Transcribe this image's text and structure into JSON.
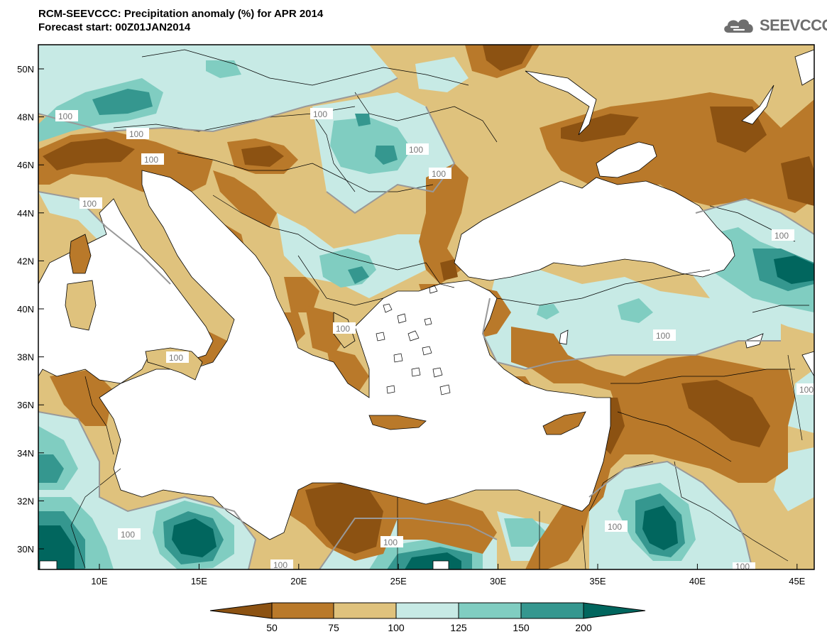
{
  "header": {
    "title_line1": "RCM-SEEVCCC: Precipitation anomaly (%) for APR 2014",
    "title_line2": "Forecast start: 00Z01JAN2014"
  },
  "logo": {
    "text": "SEEVCCC",
    "icon": "cloud-icon"
  },
  "map": {
    "lat_ticks": [
      "50N",
      "48N",
      "46N",
      "44N",
      "42N",
      "40N",
      "38N",
      "36N",
      "34N",
      "32N",
      "30N"
    ],
    "lon_ticks": [
      "10E",
      "15E",
      "20E",
      "25E",
      "30E",
      "35E",
      "40E",
      "45E"
    ],
    "contour_label": "100"
  },
  "colorbar": {
    "labels": [
      "50",
      "75",
      "100",
      "125",
      "150",
      "200"
    ],
    "colors": [
      "#8c5212",
      "#b9792a",
      "#dfc27d",
      "#c7eae5",
      "#80cdc1",
      "#35978f",
      "#01665e"
    ]
  },
  "colors": {
    "brown_dark": "#8c5212",
    "brown_mid": "#b9792a",
    "tan": "#dfc27d",
    "teal_light": "#c7eae5",
    "teal_mid": "#80cdc1",
    "teal_dark": "#35978f",
    "teal_darkest": "#01665e",
    "contour": "#999999",
    "sea": "#ffffff"
  }
}
